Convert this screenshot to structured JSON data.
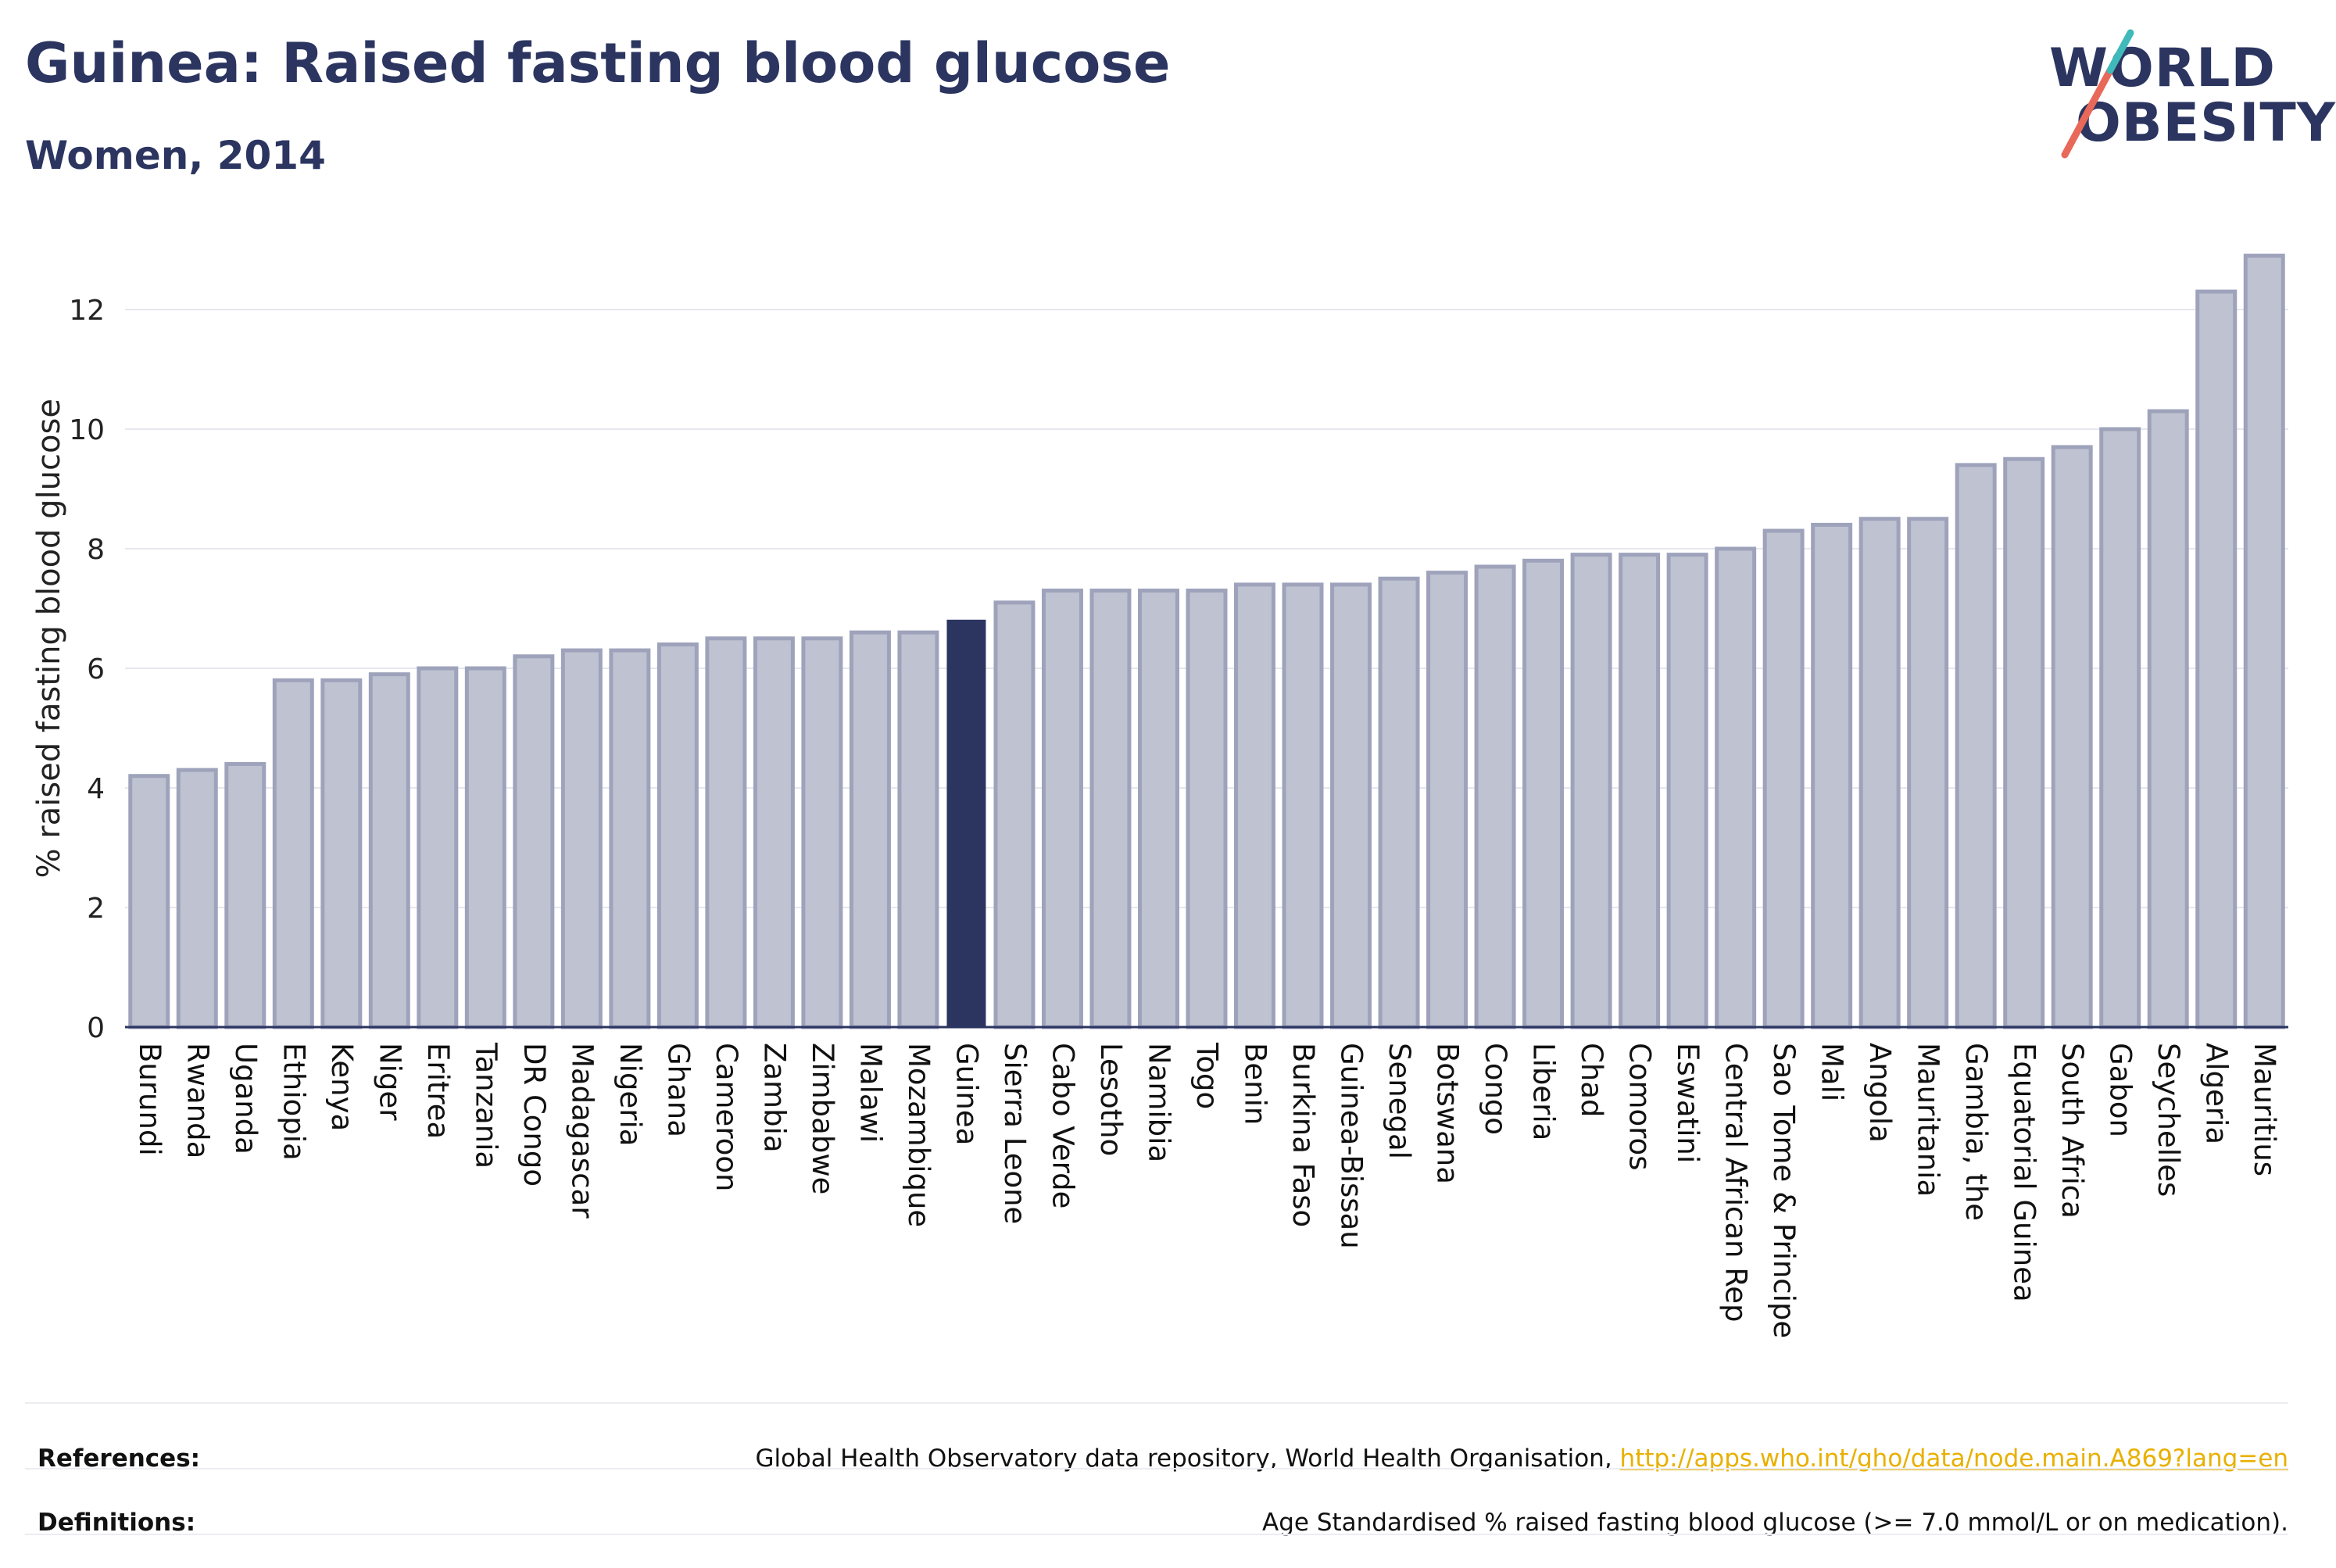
{
  "header": {
    "title": "Guinea: Raised fasting blood glucose",
    "subtitle": "Women, 2014"
  },
  "logo": {
    "line1": "WORLD",
    "line2": "OBESITY",
    "slash_colors": [
      "#e8685a",
      "#3fb9b9"
    ]
  },
  "colors": {
    "bar": "#bfc2d1",
    "bar_border": "#9ea3bb",
    "highlight": "#2b3560",
    "axis": "#2b3560",
    "grid": "#e6e7ee"
  },
  "chart_data": {
    "type": "bar",
    "ylabel": "% raised fasting blood glucose",
    "xlabel": "",
    "ylim": [
      0,
      13
    ],
    "yticks": [
      0,
      2,
      4,
      6,
      8,
      10,
      12
    ],
    "grid": true,
    "highlight": "Guinea",
    "categories": [
      "Burundi",
      "Rwanda",
      "Uganda",
      "Ethiopia",
      "Kenya",
      "Niger",
      "Eritrea",
      "Tanzania",
      "DR Congo",
      "Madagascar",
      "Nigeria",
      "Ghana",
      "Cameroon",
      "Zambia",
      "Zimbabwe",
      "Malawi",
      "Mozambique",
      "Guinea",
      "Sierra Leone",
      "Cabo Verde",
      "Lesotho",
      "Namibia",
      "Togo",
      "Benin",
      "Burkina Faso",
      "Guinea-Bissau",
      "Senegal",
      "Botswana",
      "Congo",
      "Liberia",
      "Chad",
      "Comoros",
      "Eswatini",
      "Central African Rep",
      "Sao Tome & Principe",
      "Mali",
      "Angola",
      "Mauritania",
      "Gambia, the",
      "Equatorial Guinea",
      "South Africa",
      "Gabon",
      "Seychelles",
      "Algeria",
      "Mauritius"
    ],
    "values": [
      4.2,
      4.3,
      4.4,
      5.8,
      5.8,
      5.9,
      6.0,
      6.0,
      6.2,
      6.3,
      6.3,
      6.4,
      6.5,
      6.5,
      6.5,
      6.6,
      6.6,
      6.8,
      7.1,
      7.3,
      7.3,
      7.3,
      7.3,
      7.4,
      7.4,
      7.4,
      7.5,
      7.6,
      7.7,
      7.8,
      7.9,
      7.9,
      7.9,
      8.0,
      8.3,
      8.4,
      8.5,
      8.5,
      9.4,
      9.5,
      9.7,
      10.0,
      10.3,
      12.3,
      12.9
    ]
  },
  "footer": {
    "references_label": "References:",
    "references_text": "Global Health Observatory data repository, World Health Organisation, ",
    "references_link": "http://apps.who.int/gho/data/node.main.A869?lang=en",
    "definitions_label": "Definitions:",
    "definitions_text": "Age Standardised % raised fasting blood glucose (>= 7.0 mmol/L or on medication)."
  }
}
